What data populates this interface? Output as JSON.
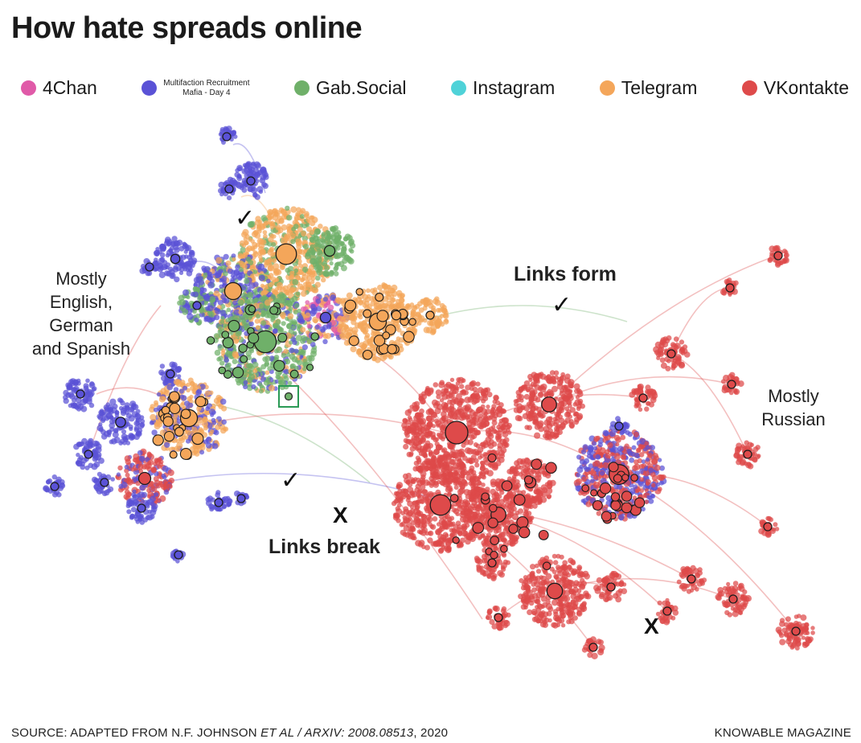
{
  "title": "How hate spreads online",
  "legend": [
    {
      "label": "4Chan",
      "color": "#e05aa8",
      "small": false
    },
    {
      "label": "Multifaction Recruitment",
      "label2": "Mafia - Day 4",
      "color": "#5a52d6",
      "small": true
    },
    {
      "label": "Gab.Social",
      "color": "#6fb069",
      "small": false
    },
    {
      "label": "Instagram",
      "color": "#4fd2d8",
      "small": false
    },
    {
      "label": "Telegram",
      "color": "#f4a65a",
      "small": false
    },
    {
      "label": "VKontakte",
      "color": "#de4a4a",
      "small": false
    }
  ],
  "annotations": {
    "mostly_english": [
      "Mostly",
      "English,",
      "German",
      "and Spanish"
    ],
    "mostly_russian": [
      "Mostly",
      "Russian"
    ],
    "links_form": "Links form",
    "links_break": "Links break",
    "check": "✓",
    "x": "X"
  },
  "footer": {
    "source_prefix": "SOURCE: ADAPTED FROM N.F. JOHNSON ",
    "source_italic": "ET AL / ARXIV: 2008.08513",
    "source_suffix": ", 2020",
    "credit": "KNOWABLE MAGAZINE"
  },
  "colors": {
    "fourchan": "#e05aa8",
    "multifaction": "#5a52d6",
    "gab": "#6fb069",
    "instagram": "#4fd2d8",
    "telegram": "#f4a65a",
    "vkontakte": "#de4a4a",
    "highlight_box": "#2a9a55"
  }
}
